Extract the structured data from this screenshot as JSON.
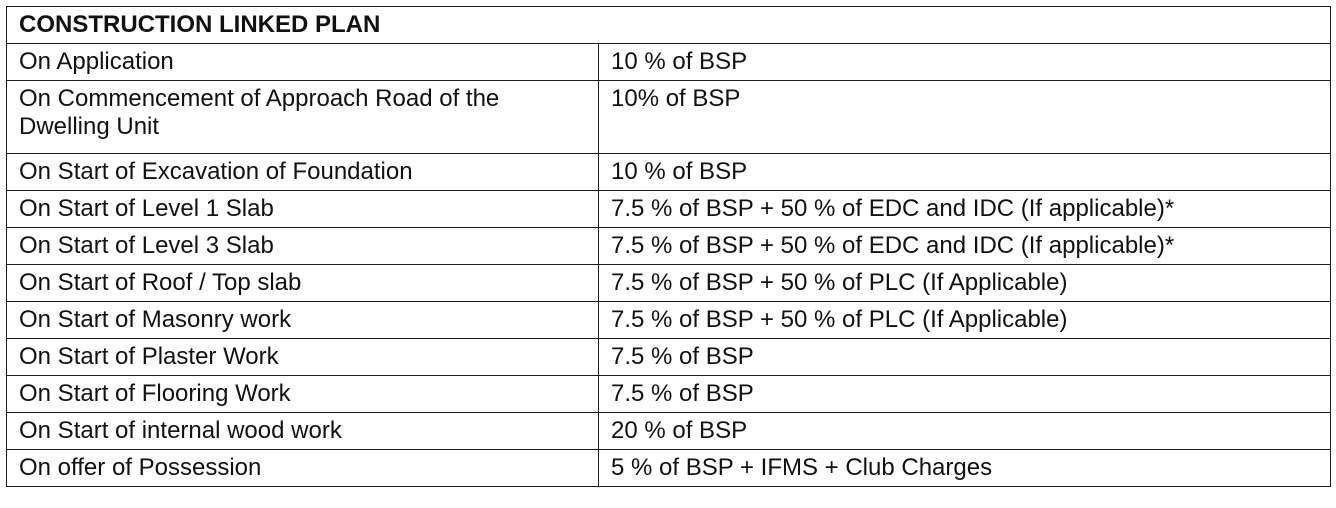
{
  "table": {
    "title": "CONSTRUCTION LINKED PLAN",
    "rows": [
      {
        "stage": "On Application",
        "payment": "10 % of BSP"
      },
      {
        "stage": "On Commencement of Approach Road of the Dwelling Unit",
        "payment": "10% of BSP"
      },
      {
        "stage": "On Start of Excavation of Foundation",
        "payment": "10 % of BSP"
      },
      {
        "stage": "On Start of Level 1 Slab",
        "payment": "7.5 % of BSP + 50 % of EDC and IDC (If applicable)*"
      },
      {
        "stage": "On Start of Level 3 Slab",
        "payment": "7.5 % of BSP + 50 % of EDC and IDC (If applicable)*"
      },
      {
        "stage": "On Start of Roof / Top slab",
        "payment": "7.5 % of BSP + 50 % of PLC (If Applicable)"
      },
      {
        "stage": "On Start of Masonry work",
        "payment": "7.5 % of BSP + 50 % of PLC (If Applicable)"
      },
      {
        "stage": "On Start of Plaster Work",
        "payment": "7.5 % of BSP"
      },
      {
        "stage": "On Start of Flooring Work",
        "payment": "7.5 % of BSP"
      },
      {
        "stage": "On Start of internal wood work",
        "payment": "20 % of BSP"
      },
      {
        "stage": "On offer of Possession",
        "payment": "5 % of BSP + IFMS + Club Charges"
      }
    ]
  }
}
